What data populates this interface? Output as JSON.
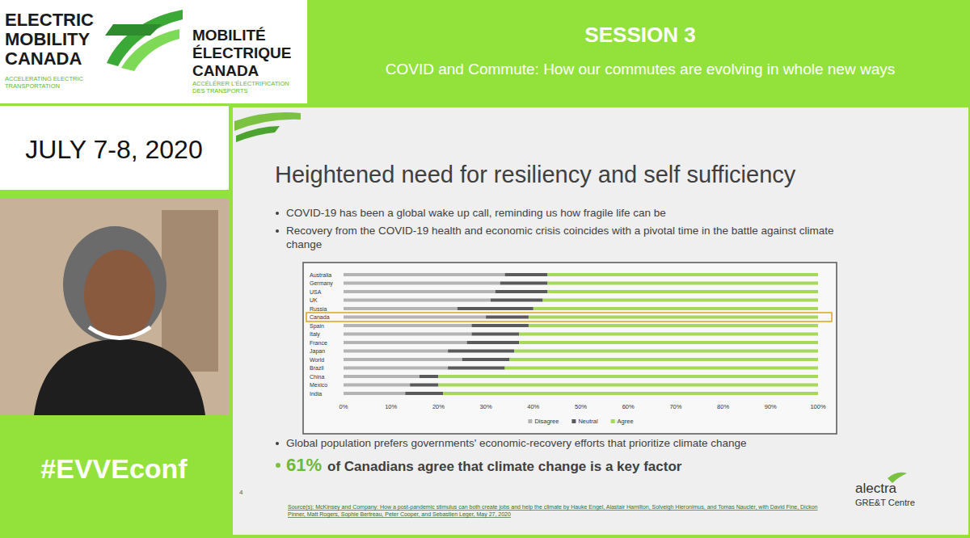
{
  "logo": {
    "en_lines": [
      "ELECTRIC",
      "MOBILITY",
      "CANADA"
    ],
    "en_tagline": [
      "ACCELERATING ELECTRIC",
      "TRANSPORTATION"
    ],
    "fr_lines": [
      "MOBILITÉ",
      "ÉLECTRIQUE",
      "CANADA"
    ],
    "fr_tagline": [
      "ACCÉLÉRER L'ÉLECTRIFICATION",
      "DES TRANSPORTS"
    ]
  },
  "session": {
    "label": "SESSION 3",
    "title": "COVID and Commute: How our commutes are evolving in whole new ways"
  },
  "date": "JULY 7-8, 2020",
  "hashtag": "#EVVEconf",
  "slide": {
    "title": "Heightened need for resiliency and self sufficiency",
    "bullets": [
      "COVID-19 has been a global wake up call, reminding us how fragile life can be",
      "Recovery from the COVID-19 health and economic crisis coincides with a pivotal time in the battle against climate change"
    ],
    "bullet_after": "Global population prefers governments' economic-recovery efforts that prioritize climate change",
    "highlight_number": "61%",
    "highlight_text": "of Canadians agree that climate change is a key factor",
    "highlighted_category": "Canada",
    "page_number": "4",
    "source": "Source(s): McKinsey and Company: How a post-pandemic stimulus can both create jobs and help the climate by Hauke Engel, Alastair Hamilton, Solveigh Hieronimus, and Tomas Nauclér, with David Fine, Dickon Pinner, Matt Rogers, Sophie Bertreau, Peter Cooper, and Sebastien Leger, May 27, 2020",
    "brand": "alectra",
    "brand_sub": "GRE&T Centre"
  },
  "chart_data": {
    "type": "bar",
    "orientation": "horizontal",
    "stacked": true,
    "grid": false,
    "legend": "bottom",
    "categories": [
      "Australia",
      "Germany",
      "USA",
      "UK",
      "Russia",
      "Canada",
      "Spain",
      "Italy",
      "France",
      "Japan",
      "World",
      "Brazil",
      "China",
      "Mexico",
      "India"
    ],
    "series": [
      {
        "name": "Disagree",
        "color": "#b4b4b4",
        "values": [
          34,
          33,
          32,
          31,
          24,
          30,
          27,
          27,
          26,
          22,
          25,
          22,
          16,
          14,
          13
        ]
      },
      {
        "name": "Neutral",
        "color": "#5a5a5a",
        "values": [
          9,
          10,
          11,
          11,
          16,
          9,
          12,
          10,
          11,
          14,
          10,
          12,
          4,
          6,
          8
        ]
      },
      {
        "name": "Agree",
        "color": "#a6d85a",
        "values": [
          57,
          57,
          57,
          58,
          60,
          61,
          61,
          63,
          63,
          64,
          65,
          66,
          80,
          80,
          79
        ]
      }
    ],
    "xlim": [
      0,
      100
    ],
    "xticks": [
      {
        "value": 0,
        "label": "0%"
      },
      {
        "value": 10,
        "label": "10%"
      },
      {
        "value": 20,
        "label": "20%"
      },
      {
        "value": 30,
        "label": "30%"
      },
      {
        "value": 40,
        "label": "40%"
      },
      {
        "value": 50,
        "label": "50%"
      },
      {
        "value": 60,
        "label": "60%"
      },
      {
        "value": 70,
        "label": "70%"
      },
      {
        "value": 80,
        "label": "80%"
      },
      {
        "value": 90,
        "label": "90%"
      },
      {
        "value": 100,
        "label": "100%"
      }
    ]
  }
}
